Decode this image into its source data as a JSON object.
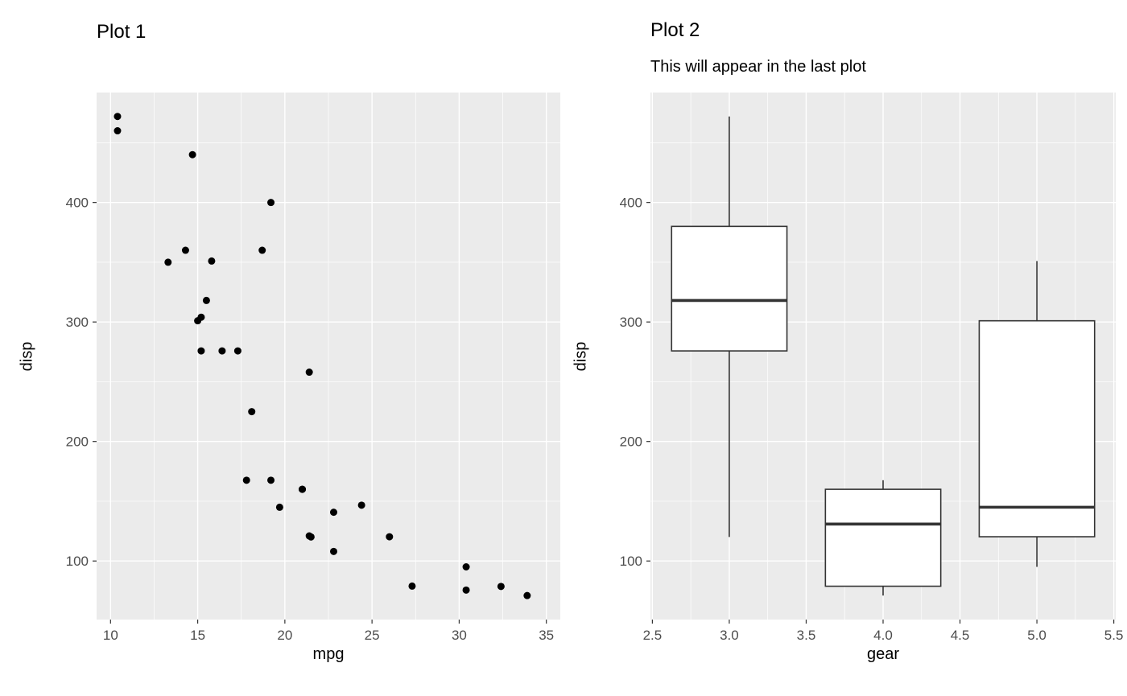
{
  "theme": {
    "panel_background": "#EBEBEB",
    "grid_color": "#FFFFFF",
    "point_color": "#000000",
    "box_stroke": "#333333",
    "box_fill": "#FFFFFF",
    "axis_text_color": "#4D4D4D",
    "tick_color": "#333333",
    "title_color": "#000000"
  },
  "chart_data": [
    {
      "type": "scatter",
      "title": "Plot 1",
      "subtitle": "",
      "xlabel": "mpg",
      "ylabel": "disp",
      "xlim": [
        9.2,
        35.8
      ],
      "ylim": [
        51,
        492
      ],
      "x_ticks": [
        10,
        15,
        20,
        25,
        30,
        35
      ],
      "x_tick_labels": [
        "10",
        "15",
        "20",
        "25",
        "30",
        "35"
      ],
      "y_ticks": [
        100,
        200,
        300,
        400
      ],
      "y_tick_labels": [
        "100",
        "200",
        "300",
        "400"
      ],
      "grid": true,
      "legend": "none",
      "points": [
        [
          21.0,
          160.0
        ],
        [
          21.0,
          160.0
        ],
        [
          22.8,
          108.0
        ],
        [
          21.4,
          258.0
        ],
        [
          18.7,
          360.0
        ],
        [
          18.1,
          225.0
        ],
        [
          14.3,
          360.0
        ],
        [
          24.4,
          146.7
        ],
        [
          22.8,
          140.8
        ],
        [
          19.2,
          167.6
        ],
        [
          17.8,
          167.6
        ],
        [
          16.4,
          275.8
        ],
        [
          17.3,
          275.8
        ],
        [
          15.2,
          275.8
        ],
        [
          10.4,
          472.0
        ],
        [
          10.4,
          460.0
        ],
        [
          14.7,
          440.0
        ],
        [
          32.4,
          78.7
        ],
        [
          30.4,
          75.7
        ],
        [
          33.9,
          71.1
        ],
        [
          21.5,
          120.1
        ],
        [
          15.5,
          318.0
        ],
        [
          15.2,
          304.0
        ],
        [
          13.3,
          350.0
        ],
        [
          19.2,
          400.0
        ],
        [
          27.3,
          79.0
        ],
        [
          26.0,
          120.3
        ],
        [
          30.4,
          95.1
        ],
        [
          15.8,
          351.0
        ],
        [
          19.7,
          145.0
        ],
        [
          15.0,
          301.0
        ],
        [
          21.4,
          121.0
        ]
      ]
    },
    {
      "type": "boxplot",
      "title": "Plot 2",
      "subtitle": "This will appear in the last plot",
      "xlabel": "gear",
      "ylabel": "disp",
      "xlim": [
        2.4875,
        5.5125
      ],
      "ylim": [
        51,
        492
      ],
      "x_ticks": [
        2.5,
        3.0,
        3.5,
        4.0,
        4.5,
        5.0,
        5.5
      ],
      "x_tick_labels": [
        "2.5",
        "3.0",
        "3.5",
        "4.0",
        "4.5",
        "5.0",
        "5.5"
      ],
      "y_ticks": [
        100,
        200,
        300,
        400
      ],
      "y_tick_labels": [
        "100",
        "200",
        "300",
        "400"
      ],
      "grid": true,
      "legend": "none",
      "box_width": 0.75,
      "boxes": [
        {
          "x": 3,
          "min": 120.1,
          "q1": 275.8,
          "median": 318.0,
          "q3": 380.0,
          "max": 472.0
        },
        {
          "x": 4,
          "min": 71.1,
          "q1": 78.9,
          "median": 130.9,
          "q3": 160.0,
          "max": 167.6
        },
        {
          "x": 5,
          "min": 95.1,
          "q1": 120.3,
          "median": 145.0,
          "q3": 301.0,
          "max": 351.0
        }
      ]
    }
  ]
}
